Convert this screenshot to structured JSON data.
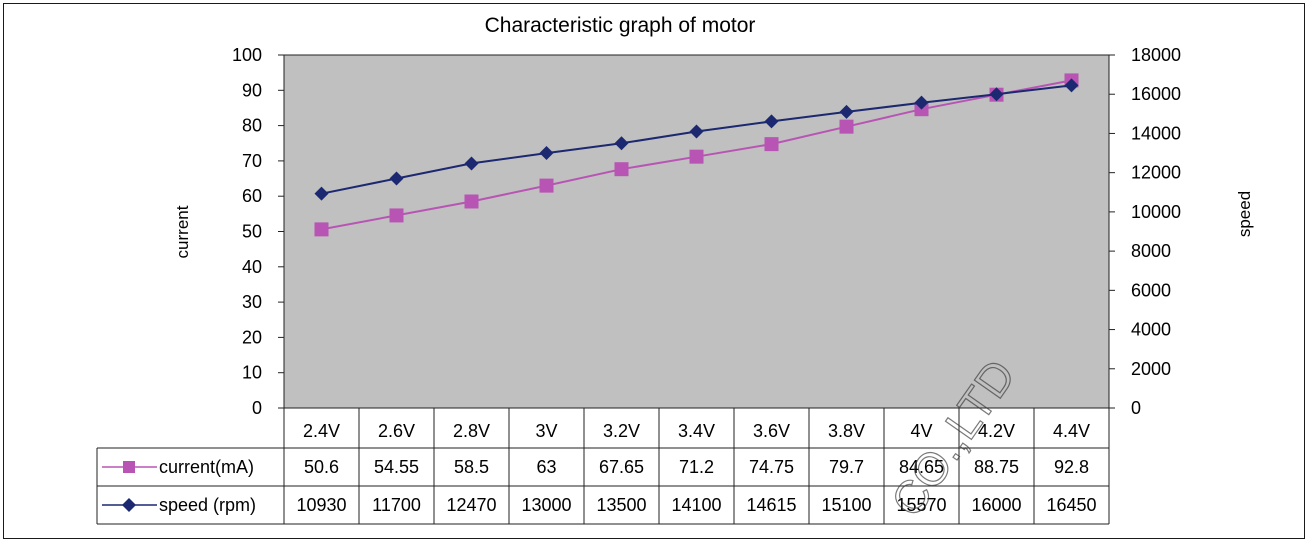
{
  "chart_data": {
    "type": "line",
    "title": "Characteristic graph of motor",
    "categories": [
      "2.4V",
      "2.6V",
      "2.8V",
      "3V",
      "3.2V",
      "3.4V",
      "3.6V",
      "3.8V",
      "4V",
      "4.2V",
      "4.4V"
    ],
    "y_left_label": "current",
    "y_right_label": "speed",
    "y_left_range": [
      0,
      100
    ],
    "y_left_ticks": [
      "0",
      "10",
      "20",
      "30",
      "40",
      "50",
      "60",
      "70",
      "80",
      "90",
      "100"
    ],
    "y_right_range": [
      0,
      18000
    ],
    "y_right_ticks": [
      "0",
      "2000",
      "4000",
      "6000",
      "8000",
      "10000",
      "12000",
      "14000",
      "16000",
      "18000"
    ],
    "series": [
      {
        "name": "current(mA)",
        "axis": "left",
        "color": "#b855b4",
        "marker": "square",
        "values": [
          50.6,
          54.55,
          58.5,
          63,
          67.65,
          71.2,
          74.75,
          79.7,
          84.65,
          88.75,
          92.8
        ],
        "labels": [
          "50.6",
          "54.55",
          "58.5",
          "63",
          "67.65",
          "71.2",
          "74.75",
          "79.7",
          "84.65",
          "88.75",
          "92.8"
        ]
      },
      {
        "name": "speed (rpm)",
        "axis": "right",
        "color": "#1c2870",
        "marker": "diamond",
        "values": [
          10930,
          11700,
          12470,
          13000,
          13500,
          14100,
          14615,
          15100,
          15570,
          16000,
          16450
        ],
        "labels": [
          "10930",
          "11700",
          "12470",
          "13000",
          "13500",
          "14100",
          "14615",
          "15100",
          "15570",
          "16000",
          "16450"
        ]
      }
    ],
    "plot_background": "#c0c0c0",
    "legend": "data-table",
    "watermark": "CO.,LTD"
  }
}
